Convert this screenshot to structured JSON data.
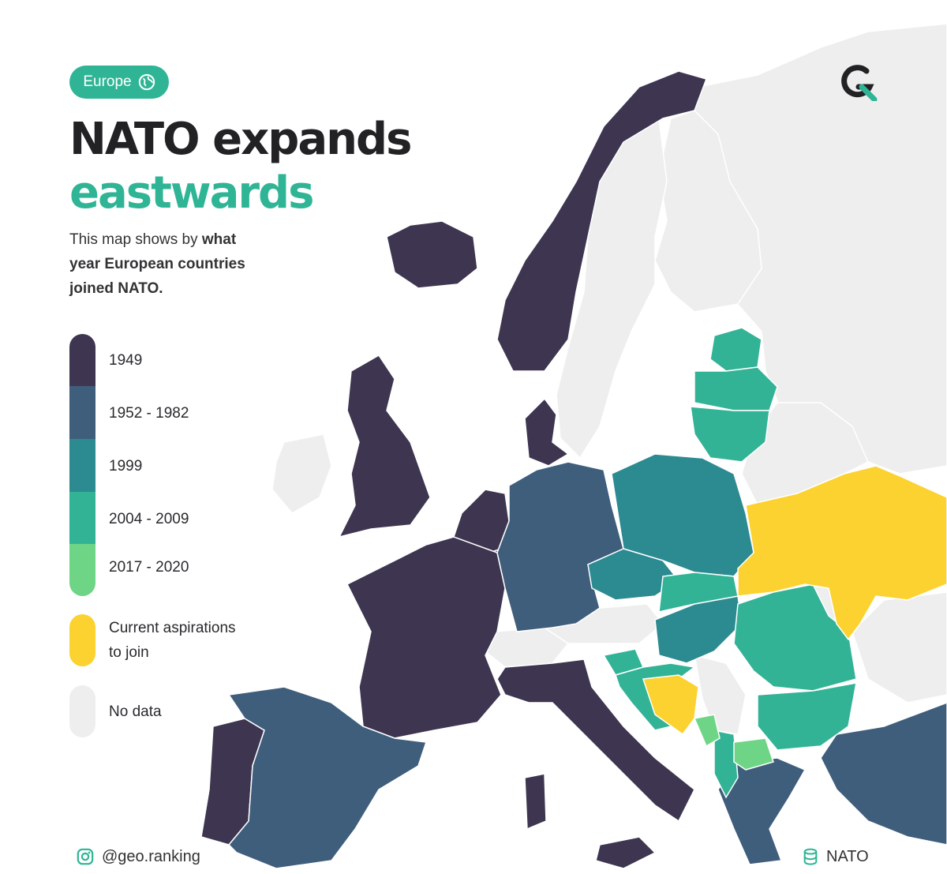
{
  "tag": {
    "label": "Europe",
    "icon": "globe-icon"
  },
  "title": {
    "line1": "NATO expands",
    "line2": "eastwards"
  },
  "subtitle": {
    "part1": "This map shows by ",
    "bold1": "what year European countries joined NATO."
  },
  "legend": {
    "items": [
      {
        "label": "1949",
        "color": "#3e3551"
      },
      {
        "label": "1952 - 1982",
        "color": "#3f5e7c"
      },
      {
        "label": "1999",
        "color": "#2c8a91"
      },
      {
        "label": "2004 - 2009",
        "color": "#33b396"
      },
      {
        "label": "2017 - 2020",
        "color": "#6fd586"
      }
    ],
    "aspiration": {
      "label_line1": "Current aspirations",
      "label_line2": "to join",
      "color": "#fbd22f"
    },
    "no_data": {
      "label": "No data",
      "color": "#eeeeee"
    }
  },
  "footer": {
    "handle": "@geo.ranking",
    "handle_icon": "instagram-icon",
    "source": "NATO",
    "source_icon": "database-icon"
  },
  "brand": {
    "logo": "geo-ranking-logo",
    "accent": "#2fb595"
  }
}
